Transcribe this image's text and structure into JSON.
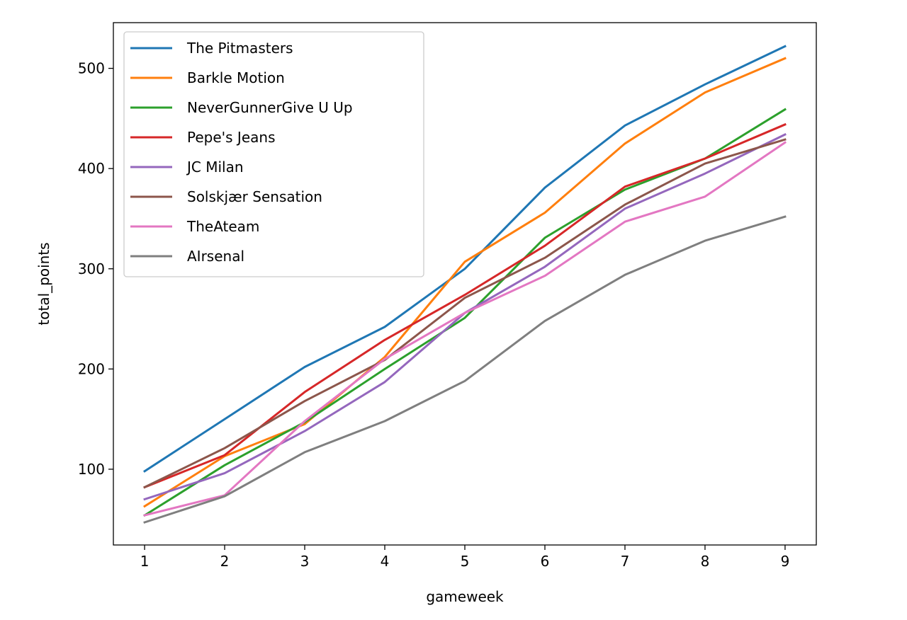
{
  "chart_data": {
    "type": "line",
    "title": "",
    "xlabel": "gameweek",
    "ylabel": "total_points",
    "x": [
      1,
      2,
      3,
      4,
      5,
      6,
      7,
      8,
      9
    ],
    "xlim": [
      0.61,
      9.39
    ],
    "ylim": [
      24.4,
      545.6
    ],
    "xticks": [
      1,
      2,
      3,
      4,
      5,
      6,
      7,
      8,
      9
    ],
    "yticks": [
      100,
      200,
      300,
      400,
      500
    ],
    "grid": false,
    "legend_position": "upper-left",
    "series": [
      {
        "name": "The Pitmasters",
        "color": "#1f77b4",
        "values": [
          98,
          150,
          202,
          242,
          300,
          381,
          443,
          484,
          522
        ]
      },
      {
        "name": "Barkle Motion",
        "color": "#ff7f0e",
        "values": [
          63,
          113,
          145,
          212,
          307,
          356,
          425,
          476,
          510
        ]
      },
      {
        "name": "NeverGunnerGive U Up",
        "color": "#2ca02c",
        "values": [
          54,
          104,
          147,
          200,
          251,
          331,
          379,
          410,
          459
        ]
      },
      {
        "name": "Pepe's Jeans",
        "color": "#d62728",
        "values": [
          82,
          114,
          177,
          229,
          274,
          323,
          382,
          410,
          444
        ]
      },
      {
        "name": "JC Milan",
        "color": "#9467bd",
        "values": [
          70,
          96,
          138,
          187,
          256,
          302,
          360,
          395,
          434
        ]
      },
      {
        "name": "Solskjær Sensation",
        "color": "#8c564b",
        "values": [
          82,
          121,
          168,
          209,
          271,
          311,
          364,
          405,
          429
        ]
      },
      {
        "name": "TheAteam",
        "color": "#e377c2",
        "values": [
          54,
          74,
          148,
          210,
          256,
          293,
          347,
          372,
          426
        ]
      },
      {
        "name": "AIrsenal",
        "color": "#7f7f7f",
        "values": [
          47,
          73,
          117,
          148,
          188,
          248,
          294,
          328,
          352
        ]
      }
    ]
  }
}
